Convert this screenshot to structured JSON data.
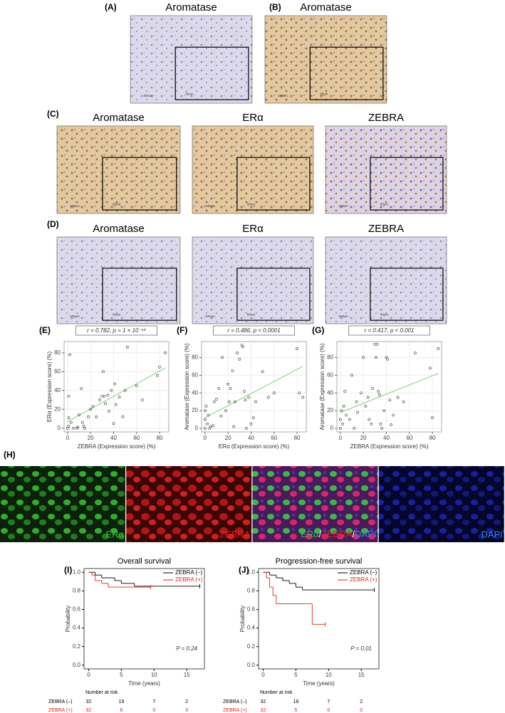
{
  "figure": {
    "row1": {
      "panels": [
        {
          "label": "(A)",
          "title": "Aromatase",
          "scale": "100um",
          "inset_scale": "50um"
        },
        {
          "label": "(B)",
          "title": "Aromatase",
          "scale": "100um",
          "inset_scale": "50um"
        }
      ]
    },
    "row2": {
      "label": "(C)",
      "panels": [
        {
          "title": "Aromatase",
          "scale": "100um",
          "inset_scale": "50um"
        },
        {
          "title": "ERα",
          "scale": "100um",
          "inset_scale": "50um"
        },
        {
          "title": "ZEBRA",
          "scale": "100um",
          "inset_scale": "50um"
        }
      ]
    },
    "row3": {
      "label": "(D)",
      "panels": [
        {
          "title": "Aromatase",
          "scale": "100um",
          "inset_scale": "50um"
        },
        {
          "title": "ERα",
          "scale": "100um",
          "inset_scale": "50um"
        },
        {
          "title": "ZEBRA",
          "scale": "100um",
          "inset_scale": "50um"
        }
      ]
    },
    "fluorescence": {
      "label": "(H)",
      "panels": [
        {
          "label": "ERα"
        },
        {
          "label": "ZEBRA"
        },
        {
          "label_parts": [
            "ERα",
            "/",
            "ZEBRA",
            "/",
            "DAPI"
          ]
        },
        {
          "label": "DAPI"
        }
      ]
    }
  },
  "chart_data": [
    {
      "type": "scatter",
      "label": "(E)",
      "annotation": "r = 0.782, p = 1 × 10⁻¹⁴",
      "x": [
        0,
        1,
        2,
        1,
        1,
        3,
        5,
        8,
        9,
        10,
        12,
        13,
        14,
        15,
        18,
        20,
        22,
        25,
        28,
        30,
        31,
        32,
        33,
        35,
        36,
        38,
        40,
        41,
        42,
        45,
        48,
        50,
        52,
        60,
        65,
        78,
        80,
        85
      ],
      "y": [
        0,
        2,
        78,
        34,
        11,
        6,
        0,
        0,
        1,
        14,
        42,
        6,
        2,
        0,
        12,
        20,
        23,
        12,
        30,
        34,
        60,
        34,
        26,
        35,
        18,
        40,
        5,
        47,
        25,
        33,
        12,
        40,
        86,
        45,
        30,
        56,
        65,
        80
      ],
      "color": "#333",
      "fit_line": {
        "x": [
          0,
          85
        ],
        "y": [
          7,
          64
        ],
        "color": "#7fd07f"
      },
      "xlabel": "ZEBRA (Expression score) (%)",
      "ylabel": "ERα (Expression score) (%)",
      "xlim": [
        -3,
        88
      ],
      "ylim": [
        -4,
        92
      ],
      "xticks": [
        0,
        20,
        40,
        60,
        80
      ],
      "yticks": [
        0,
        20,
        40,
        60,
        80
      ],
      "grid": true
    },
    {
      "type": "scatter",
      "label": "(F)",
      "annotation": "r = 0.486, p < 0.0001",
      "x": [
        0,
        0,
        0,
        1,
        2,
        3,
        4,
        5,
        7,
        8,
        10,
        12,
        14,
        15,
        18,
        20,
        21,
        22,
        24,
        25,
        26,
        28,
        30,
        32,
        33,
        34,
        35,
        36,
        38,
        40,
        42,
        44,
        50,
        55,
        60,
        80,
        82,
        85
      ],
      "y": [
        0,
        10,
        20,
        25,
        5,
        15,
        0,
        2,
        3,
        30,
        33,
        45,
        14,
        80,
        20,
        50,
        30,
        45,
        65,
        2,
        30,
        85,
        78,
        94,
        92,
        42,
        32,
        0,
        35,
        5,
        12,
        30,
        64,
        35,
        40,
        90,
        40,
        35
      ],
      "color": "#333",
      "fit_line": {
        "x": [
          0,
          85
        ],
        "y": [
          12,
          70
        ],
        "color": "#7fd07f"
      },
      "xlabel": "ERα (Expression score) (%)",
      "ylabel": "Aromatase (Expression score) (%)",
      "xlim": [
        -3,
        88
      ],
      "ylim": [
        -4,
        98
      ],
      "xticks": [
        0,
        20,
        40,
        60,
        80
      ],
      "yticks": [
        0,
        20,
        40,
        60,
        80
      ],
      "grid": true
    },
    {
      "type": "scatter",
      "label": "(G)",
      "annotation": "r = 0.417, p < 0.001",
      "x": [
        0,
        0,
        1,
        2,
        3,
        4,
        5,
        8,
        10,
        12,
        14,
        15,
        18,
        20,
        22,
        24,
        25,
        27,
        28,
        30,
        31,
        32,
        33,
        34,
        35,
        36,
        38,
        40,
        41,
        43,
        44,
        46,
        50,
        55,
        65,
        78,
        80,
        85
      ],
      "y": [
        10,
        0,
        20,
        5,
        25,
        42,
        15,
        10,
        60,
        0,
        30,
        18,
        40,
        80,
        25,
        35,
        10,
        5,
        45,
        95,
        80,
        95,
        42,
        38,
        5,
        0,
        20,
        80,
        78,
        32,
        4,
        15,
        35,
        30,
        85,
        68,
        12,
        90
      ],
      "color": "#333",
      "fit_line": {
        "x": [
          0,
          85
        ],
        "y": [
          18,
          62
        ],
        "color": "#7fd07f"
      },
      "xlabel": "ZEBRA (Expression score) (%)",
      "ylabel": "Aromatase (Expression score) (%)",
      "xlim": [
        -3,
        88
      ],
      "ylim": [
        -4,
        98
      ],
      "xticks": [
        0,
        20,
        40,
        60,
        80
      ],
      "yticks": [
        0,
        20,
        40,
        60,
        80
      ],
      "grid": true
    },
    {
      "type": "step",
      "label": "(I)",
      "title": "Overall survival",
      "annotation": "P = 0.24",
      "legend": "upper right",
      "series": [
        {
          "name": "ZEBRA (–)",
          "color": "#000000",
          "x": [
            0,
            1,
            2,
            3,
            4,
            5,
            6,
            7,
            8,
            17
          ],
          "values": [
            1,
            0.97,
            0.94,
            0.94,
            0.91,
            0.88,
            0.88,
            0.85,
            0.85,
            0.85
          ]
        },
        {
          "name": "ZEBRA (+)",
          "color": "#e0221b",
          "x": [
            0,
            0.5,
            1,
            2,
            3,
            9.5
          ],
          "values": [
            1,
            0.97,
            0.91,
            0.88,
            0.84,
            0.84
          ]
        }
      ],
      "xlabel": "Time (years)",
      "ylabel": "Probability",
      "xlim": [
        -0.7,
        17.7
      ],
      "ylim": [
        -0.04,
        1.04
      ],
      "xticks": [
        0,
        5,
        10,
        15
      ],
      "yticks": [
        {
          "value": 0,
          "label": "0.0"
        },
        0.2,
        0.4,
        0.6,
        0.8,
        {
          "value": 1,
          "label": "1.0"
        }
      ],
      "risk_table": {
        "title": "Number at risk",
        "rows": [
          {
            "name": "ZEBRA (–)",
            "color": "#000000",
            "counts": [
              32,
              19,
              7,
              2
            ]
          },
          {
            "name": "ZEBRA (+)",
            "color": "#e0221b",
            "counts": [
              32,
              6,
              0,
              0
            ]
          }
        ]
      }
    },
    {
      "type": "step",
      "label": "(J)",
      "title": "Progression-free survival",
      "annotation": "P = 0.01",
      "legend": "upper right",
      "series": [
        {
          "name": "ZEBRA (–)",
          "color": "#000000",
          "x": [
            0,
            1,
            2,
            3,
            4,
            5,
            6,
            17
          ],
          "values": [
            1,
            0.97,
            0.94,
            0.91,
            0.88,
            0.84,
            0.81,
            0.81
          ]
        },
        {
          "name": "ZEBRA (+)",
          "color": "#e0221b",
          "x": [
            0,
            0.5,
            1,
            1.5,
            2,
            5,
            7.5,
            9.5
          ],
          "values": [
            1,
            0.94,
            0.84,
            0.75,
            0.66,
            0.66,
            0.44,
            0.44
          ]
        }
      ],
      "xlabel": "Time (years)",
      "ylabel": "Probability",
      "xlim": [
        -0.7,
        17.7
      ],
      "ylim": [
        -0.04,
        1.04
      ],
      "xticks": [
        0,
        5,
        10,
        15
      ],
      "yticks": [
        {
          "value": 0,
          "label": "0.0"
        },
        0.2,
        0.4,
        0.6,
        0.8,
        {
          "value": 1,
          "label": "1.0"
        }
      ],
      "risk_table": {
        "title": "Number at risk",
        "rows": [
          {
            "name": "ZEBRA (–)",
            "color": "#000000",
            "counts": [
              32,
              18,
              7,
              2
            ]
          },
          {
            "name": "ZEBRA (+)",
            "color": "#e0221b",
            "counts": [
              32,
              5,
              0,
              0
            ]
          }
        ]
      }
    }
  ]
}
